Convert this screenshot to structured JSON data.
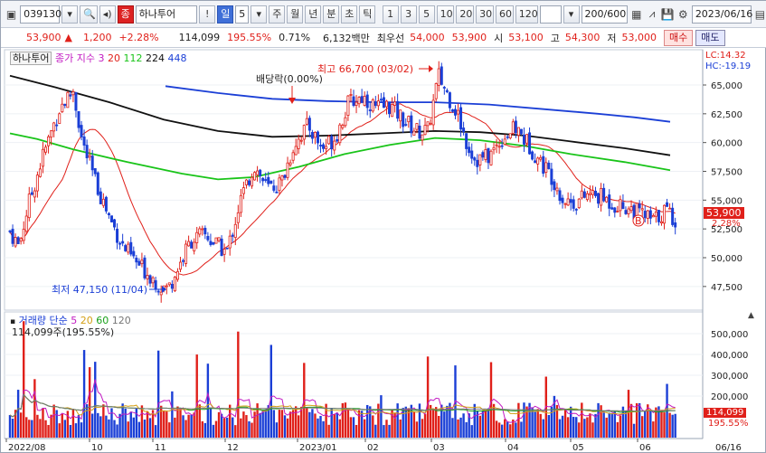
{
  "toolbar": {
    "code": "039130",
    "name": "하나투어",
    "name_tag": "종",
    "exclaim": "!",
    "period_active": "일",
    "period_num": "5",
    "periods": [
      "주",
      "월",
      "년",
      "분",
      "초",
      "틱"
    ],
    "minutes": [
      "1",
      "3",
      "5",
      "10",
      "20",
      "30",
      "60",
      "120"
    ],
    "count": "200",
    "count_total": "/600",
    "date": "2023/06/16"
  },
  "quote": {
    "price": "53,900",
    "change_arrow": "▲",
    "change": "1,200",
    "change_pct": "+2.28%",
    "volume": "114,099",
    "volume_ratio": "195.55%",
    "turnover": "0.71%",
    "amount": "6,132백만",
    "best_ask_label": "최우선",
    "best_ask": "54,000",
    "best_bid": "53,900",
    "open_label": "시",
    "open": "53,100",
    "high_label": "고",
    "high": "54,300",
    "low_label": "저",
    "low": "53,000",
    "buy_btn": "매수",
    "sell_btn": "매도"
  },
  "price_panel": {
    "stock_tag": "하나투어",
    "ma_title": "종가 지수 3",
    "ma": [
      {
        "label": "20",
        "color": "#e0201a"
      },
      {
        "label": "112",
        "color": "#19c419"
      },
      {
        "label": "224",
        "color": "#111111"
      },
      {
        "label": "448",
        "color": "#1b3fd6"
      }
    ],
    "lc": "LC:14.32",
    "hc": "HC:-19.19",
    "y_ticks": [
      "65,000",
      "62,500",
      "60,000",
      "57,500",
      "55,000",
      "52,500",
      "50,000",
      "47,500"
    ],
    "current_price_tag": "53,900",
    "current_pct_tag": "2.28%",
    "high_note": "최고 66,700 (03/02)",
    "low_note": "최저 47,150 (11/04)",
    "div_note": "배당락(0.00%)",
    "b_marker": "B"
  },
  "volume_panel": {
    "title": "거래량",
    "ma_title": "단순",
    "ma": [
      {
        "label": "5",
        "color": "#c21bc2"
      },
      {
        "label": "20",
        "color": "#d4a017"
      },
      {
        "label": "60",
        "color": "#19a019"
      },
      {
        "label": "120",
        "color": "#777777"
      }
    ],
    "current_note": "114,099주(195.55%)",
    "y_ticks": [
      "500,000",
      "400,000",
      "300,000",
      "200,000"
    ],
    "current_tag": "114,099",
    "current_pct_tag": "195.55%"
  },
  "x_axis": [
    "2022/08",
    "10",
    "11",
    "12",
    "2023/01",
    "02",
    "03",
    "04",
    "05",
    "06",
    "06/16"
  ],
  "colors": {
    "up": "#e0201a",
    "down": "#1b3fd6"
  }
}
